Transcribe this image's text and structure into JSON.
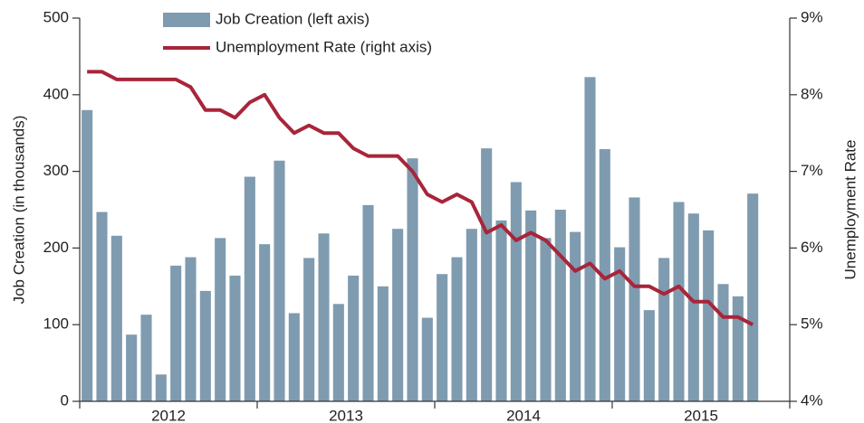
{
  "chart_data": {
    "type": "bar_line",
    "categories": [
      null,
      null,
      null,
      null,
      null,
      null,
      null,
      null,
      null,
      null,
      null,
      null,
      null,
      null,
      null,
      null,
      null,
      null,
      null,
      null,
      null,
      null,
      null,
      null,
      null,
      null,
      null,
      null,
      null,
      null,
      null,
      null,
      null,
      null,
      null,
      null,
      null,
      null,
      null,
      null,
      null,
      null,
      null,
      null,
      null,
      null
    ],
    "x_groups": [
      "2012",
      "2013",
      "2014",
      "2015"
    ],
    "series": [
      {
        "name": "Job Creation (left axis)",
        "color": "#7f9bb0",
        "type": "bar",
        "values": [
          380,
          247,
          216,
          87,
          113,
          35,
          177,
          188,
          144,
          213,
          164,
          293,
          205,
          314,
          115,
          187,
          219,
          127,
          164,
          256,
          150,
          225,
          317,
          109,
          166,
          188,
          225,
          330,
          236,
          286,
          249,
          213,
          250,
          221,
          423,
          329,
          201,
          266,
          119,
          187,
          260,
          245,
          223,
          153,
          137,
          271
        ]
      },
      {
        "name": "Unemployment Rate (right axis)",
        "color": "#a8253a",
        "type": "line",
        "axis": "y2",
        "values": [
          8.3,
          8.3,
          8.2,
          8.2,
          8.2,
          8.2,
          8.2,
          8.1,
          7.8,
          7.8,
          7.7,
          7.9,
          8.0,
          7.7,
          7.5,
          7.6,
          7.5,
          7.5,
          7.3,
          7.2,
          7.2,
          7.2,
          7.0,
          6.7,
          6.6,
          6.7,
          6.6,
          6.2,
          6.3,
          6.1,
          6.2,
          6.1,
          5.9,
          5.7,
          5.8,
          5.6,
          5.7,
          5.5,
          5.5,
          5.4,
          5.5,
          5.3,
          5.3,
          5.1,
          5.1,
          5.0
        ]
      }
    ],
    "y_label": "Job Creation (in thousands)",
    "y2_label": "Unemployment Rate",
    "ylim": [
      0,
      500
    ],
    "yticks": [
      0,
      100,
      200,
      300,
      400,
      500
    ],
    "y2lim": [
      4,
      9
    ],
    "y2ticks": [
      {
        "value": 4,
        "label": "4%"
      },
      {
        "value": 5,
        "label": "5%"
      },
      {
        "value": 6,
        "label": "6%"
      },
      {
        "value": 7,
        "label": "7%"
      },
      {
        "value": 8,
        "label": "8%"
      },
      {
        "value": 9,
        "label": "9%"
      }
    ],
    "legend": "top-left",
    "grid": false
  }
}
